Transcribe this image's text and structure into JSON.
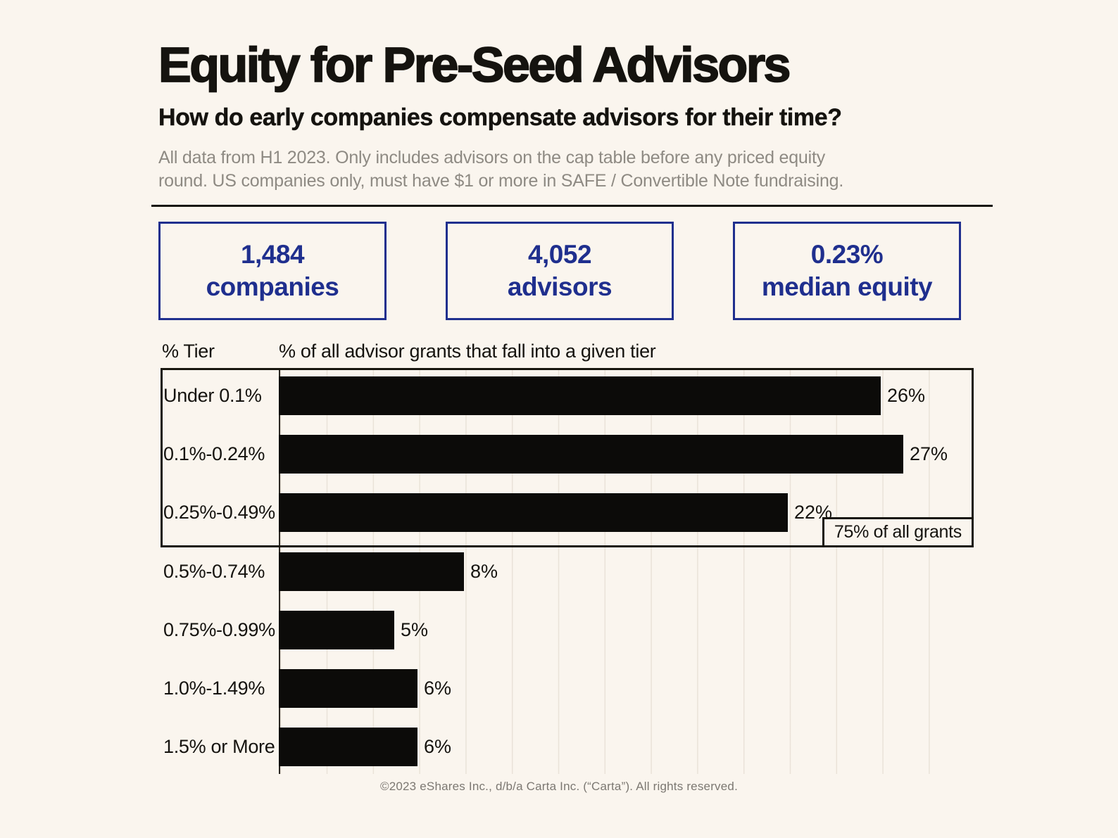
{
  "meta": {
    "background_color": "#faf5ee",
    "accent_blue": "#1f2f8e",
    "bar_color": "#0c0b09",
    "border_color": "#18160f"
  },
  "header": {
    "title": "Equity for Pre-Seed Advisors",
    "subtitle": "How do early companies compensate advisors for their time?",
    "note_line1": "All data from H1 2023. Only includes advisors on the cap table before any priced equity",
    "note_line2": "round. US companies only, must have $1 or more in SAFE / Convertible Note fundraising."
  },
  "stats": [
    {
      "value": "1,484",
      "label": "companies"
    },
    {
      "value": "4,052",
      "label": "advisors"
    },
    {
      "value": "0.23%",
      "label": "median equity"
    }
  ],
  "chart_data": {
    "type": "bar",
    "orientation": "horizontal",
    "tier_header": "% Tier",
    "value_header": "% of all advisor grants that fall into a given tier",
    "categories": [
      "Under 0.1%",
      "0.1%-0.24%",
      "0.25%-0.49%",
      "0.5%-0.74%",
      "0.75%-0.99%",
      "1.0%-1.49%",
      "1.5% or More"
    ],
    "values": [
      26,
      27,
      22,
      8,
      5,
      6,
      6
    ],
    "value_labels": [
      "26%",
      "27%",
      "22%",
      "8%",
      "5%",
      "6%",
      "6%"
    ],
    "xlim": [
      0,
      30
    ],
    "gridline_step": 2,
    "grid": true,
    "legend": "none",
    "annotation": {
      "text": "75% of all grants",
      "covers": "top 3 tiers"
    }
  },
  "footer": {
    "copyright": "©2023 eShares Inc., d/b/a Carta Inc. (“Carta”). All rights reserved."
  }
}
